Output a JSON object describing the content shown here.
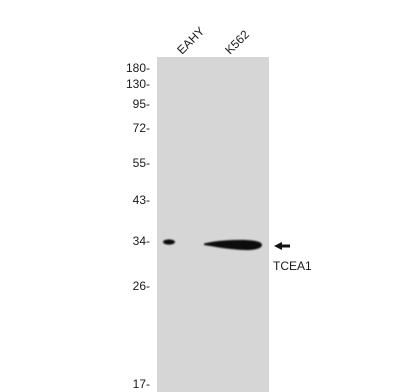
{
  "lanes": [
    {
      "label": "EAHY"
    },
    {
      "label": "K562"
    }
  ],
  "markers": [
    {
      "label": "180-",
      "kda": 180
    },
    {
      "label": "130-",
      "kda": 130
    },
    {
      "label": "95-",
      "kda": 95
    },
    {
      "label": "72-",
      "kda": 72
    },
    {
      "label": "55-",
      "kda": 55
    },
    {
      "label": "43-",
      "kda": 43
    },
    {
      "label": "34-",
      "kda": 34
    },
    {
      "label": "26-",
      "kda": 26
    },
    {
      "label": "17-",
      "kda": 17
    }
  ],
  "target": {
    "label": "TCEA1",
    "arrow_icon": "left-arrow-icon"
  },
  "colors": {
    "membrane": "#d6d6d6",
    "band": "#111111"
  }
}
